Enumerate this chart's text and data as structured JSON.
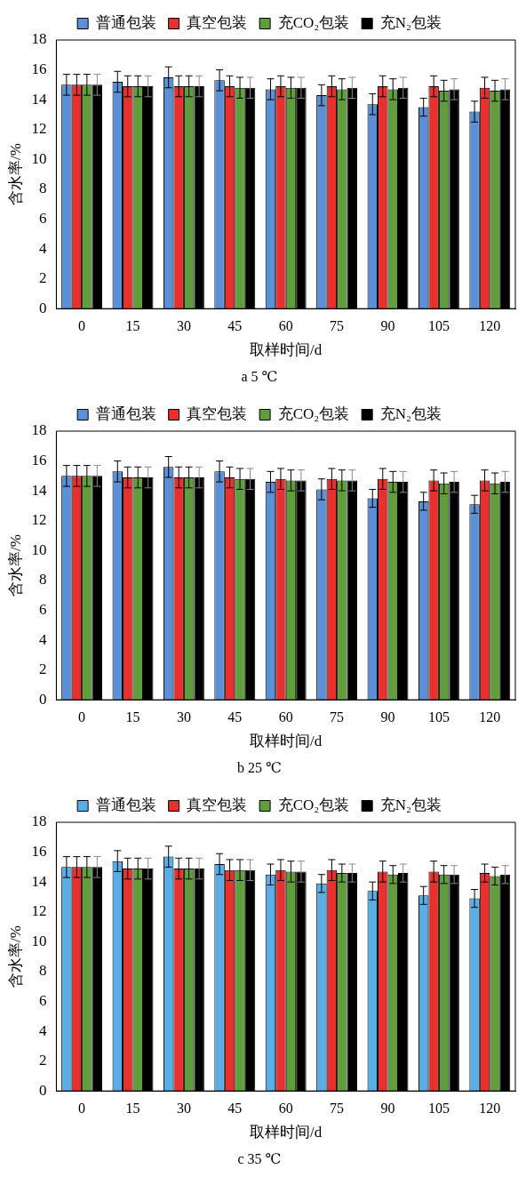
{
  "chart_data": [
    {
      "type": "bar",
      "title": "a 5 ℃",
      "xlabel": "取样时间/d",
      "ylabel": "含水率/%",
      "categories": [
        "0",
        "15",
        "30",
        "45",
        "60",
        "75",
        "90",
        "105",
        "120"
      ],
      "ylim": [
        0,
        18
      ],
      "yticks": [
        0,
        2,
        4,
        6,
        8,
        10,
        12,
        14,
        16,
        18
      ],
      "grid": false,
      "legend": "top",
      "series": [
        {
          "name": "普通包装",
          "color": "#5b8fd6",
          "values": [
            15.0,
            15.2,
            15.5,
            15.3,
            14.7,
            14.3,
            13.7,
            13.5,
            13.2
          ],
          "errors": [
            0.7,
            0.7,
            0.7,
            0.7,
            0.7,
            0.7,
            0.7,
            0.6,
            0.7
          ]
        },
        {
          "name": "真空包装",
          "color": "#e8312f",
          "values": [
            15.0,
            14.9,
            14.9,
            14.9,
            14.9,
            14.9,
            14.9,
            14.9,
            14.8
          ],
          "errors": [
            0.7,
            0.7,
            0.7,
            0.7,
            0.7,
            0.7,
            0.7,
            0.7,
            0.7
          ]
        },
        {
          "name": "充CO₂包装",
          "color": "#5f9e3a",
          "values": [
            15.0,
            14.9,
            14.9,
            14.8,
            14.8,
            14.7,
            14.7,
            14.6,
            14.6
          ],
          "errors": [
            0.7,
            0.7,
            0.7,
            0.7,
            0.7,
            0.7,
            0.7,
            0.7,
            0.7
          ]
        },
        {
          "name": "充N₂包装",
          "color": "#000000",
          "values": [
            15.0,
            14.9,
            14.9,
            14.8,
            14.8,
            14.8,
            14.8,
            14.7,
            14.7
          ],
          "errors": [
            0.7,
            0.7,
            0.7,
            0.7,
            0.7,
            0.7,
            0.7,
            0.7,
            0.7
          ]
        }
      ]
    },
    {
      "type": "bar",
      "title": "b 25 ℃",
      "xlabel": "取样时间/d",
      "ylabel": "含水率/%",
      "categories": [
        "0",
        "15",
        "30",
        "45",
        "60",
        "75",
        "90",
        "105",
        "120"
      ],
      "ylim": [
        0,
        18
      ],
      "yticks": [
        0,
        2,
        4,
        6,
        8,
        10,
        12,
        14,
        16,
        18
      ],
      "grid": false,
      "legend": "top",
      "series": [
        {
          "name": "普通包装",
          "color": "#5b8fd6",
          "values": [
            15.0,
            15.3,
            15.6,
            15.3,
            14.6,
            14.1,
            13.5,
            13.3,
            13.1
          ],
          "errors": [
            0.7,
            0.7,
            0.7,
            0.7,
            0.7,
            0.7,
            0.6,
            0.6,
            0.6
          ]
        },
        {
          "name": "真空包装",
          "color": "#e8312f",
          "values": [
            15.0,
            14.9,
            14.9,
            14.9,
            14.8,
            14.8,
            14.8,
            14.7,
            14.7
          ],
          "errors": [
            0.7,
            0.7,
            0.7,
            0.7,
            0.7,
            0.7,
            0.7,
            0.7,
            0.7
          ]
        },
        {
          "name": "充CO₂包装",
          "color": "#5f9e3a",
          "values": [
            15.0,
            14.9,
            14.9,
            14.8,
            14.7,
            14.7,
            14.6,
            14.5,
            14.5
          ],
          "errors": [
            0.7,
            0.7,
            0.7,
            0.7,
            0.7,
            0.7,
            0.7,
            0.7,
            0.7
          ]
        },
        {
          "name": "充N₂包装",
          "color": "#000000",
          "values": [
            15.0,
            14.9,
            14.9,
            14.8,
            14.7,
            14.7,
            14.6,
            14.6,
            14.6
          ],
          "errors": [
            0.7,
            0.7,
            0.7,
            0.7,
            0.7,
            0.7,
            0.7,
            0.7,
            0.7
          ]
        }
      ]
    },
    {
      "type": "bar",
      "title": "c 35 ℃",
      "xlabel": "取样时间/d",
      "ylabel": "含水率/%",
      "categories": [
        "0",
        "15",
        "30",
        "45",
        "60",
        "75",
        "90",
        "105",
        "120"
      ],
      "ylim": [
        0,
        18
      ],
      "yticks": [
        0,
        2,
        4,
        6,
        8,
        10,
        12,
        14,
        16,
        18
      ],
      "grid": false,
      "legend": "top",
      "series": [
        {
          "name": "普通包装",
          "color": "#5aaee6",
          "values": [
            15.0,
            15.4,
            15.7,
            15.2,
            14.5,
            13.9,
            13.4,
            13.1,
            12.9
          ],
          "errors": [
            0.7,
            0.7,
            0.7,
            0.7,
            0.7,
            0.6,
            0.6,
            0.6,
            0.6
          ]
        },
        {
          "name": "真空包装",
          "color": "#e8312f",
          "values": [
            15.0,
            14.9,
            14.9,
            14.8,
            14.8,
            14.8,
            14.7,
            14.7,
            14.6
          ],
          "errors": [
            0.7,
            0.7,
            0.7,
            0.7,
            0.7,
            0.7,
            0.7,
            0.7,
            0.6
          ]
        },
        {
          "name": "充CO₂包装",
          "color": "#5f9e3a",
          "values": [
            15.0,
            14.9,
            14.9,
            14.8,
            14.7,
            14.6,
            14.5,
            14.5,
            14.4
          ],
          "errors": [
            0.7,
            0.7,
            0.7,
            0.7,
            0.7,
            0.6,
            0.6,
            0.6,
            0.6
          ]
        },
        {
          "name": "充N₂包装",
          "color": "#000000",
          "values": [
            15.0,
            14.9,
            14.9,
            14.8,
            14.7,
            14.6,
            14.6,
            14.5,
            14.5
          ],
          "errors": [
            0.7,
            0.7,
            0.7,
            0.7,
            0.7,
            0.6,
            0.6,
            0.6,
            0.6
          ]
        }
      ]
    }
  ]
}
